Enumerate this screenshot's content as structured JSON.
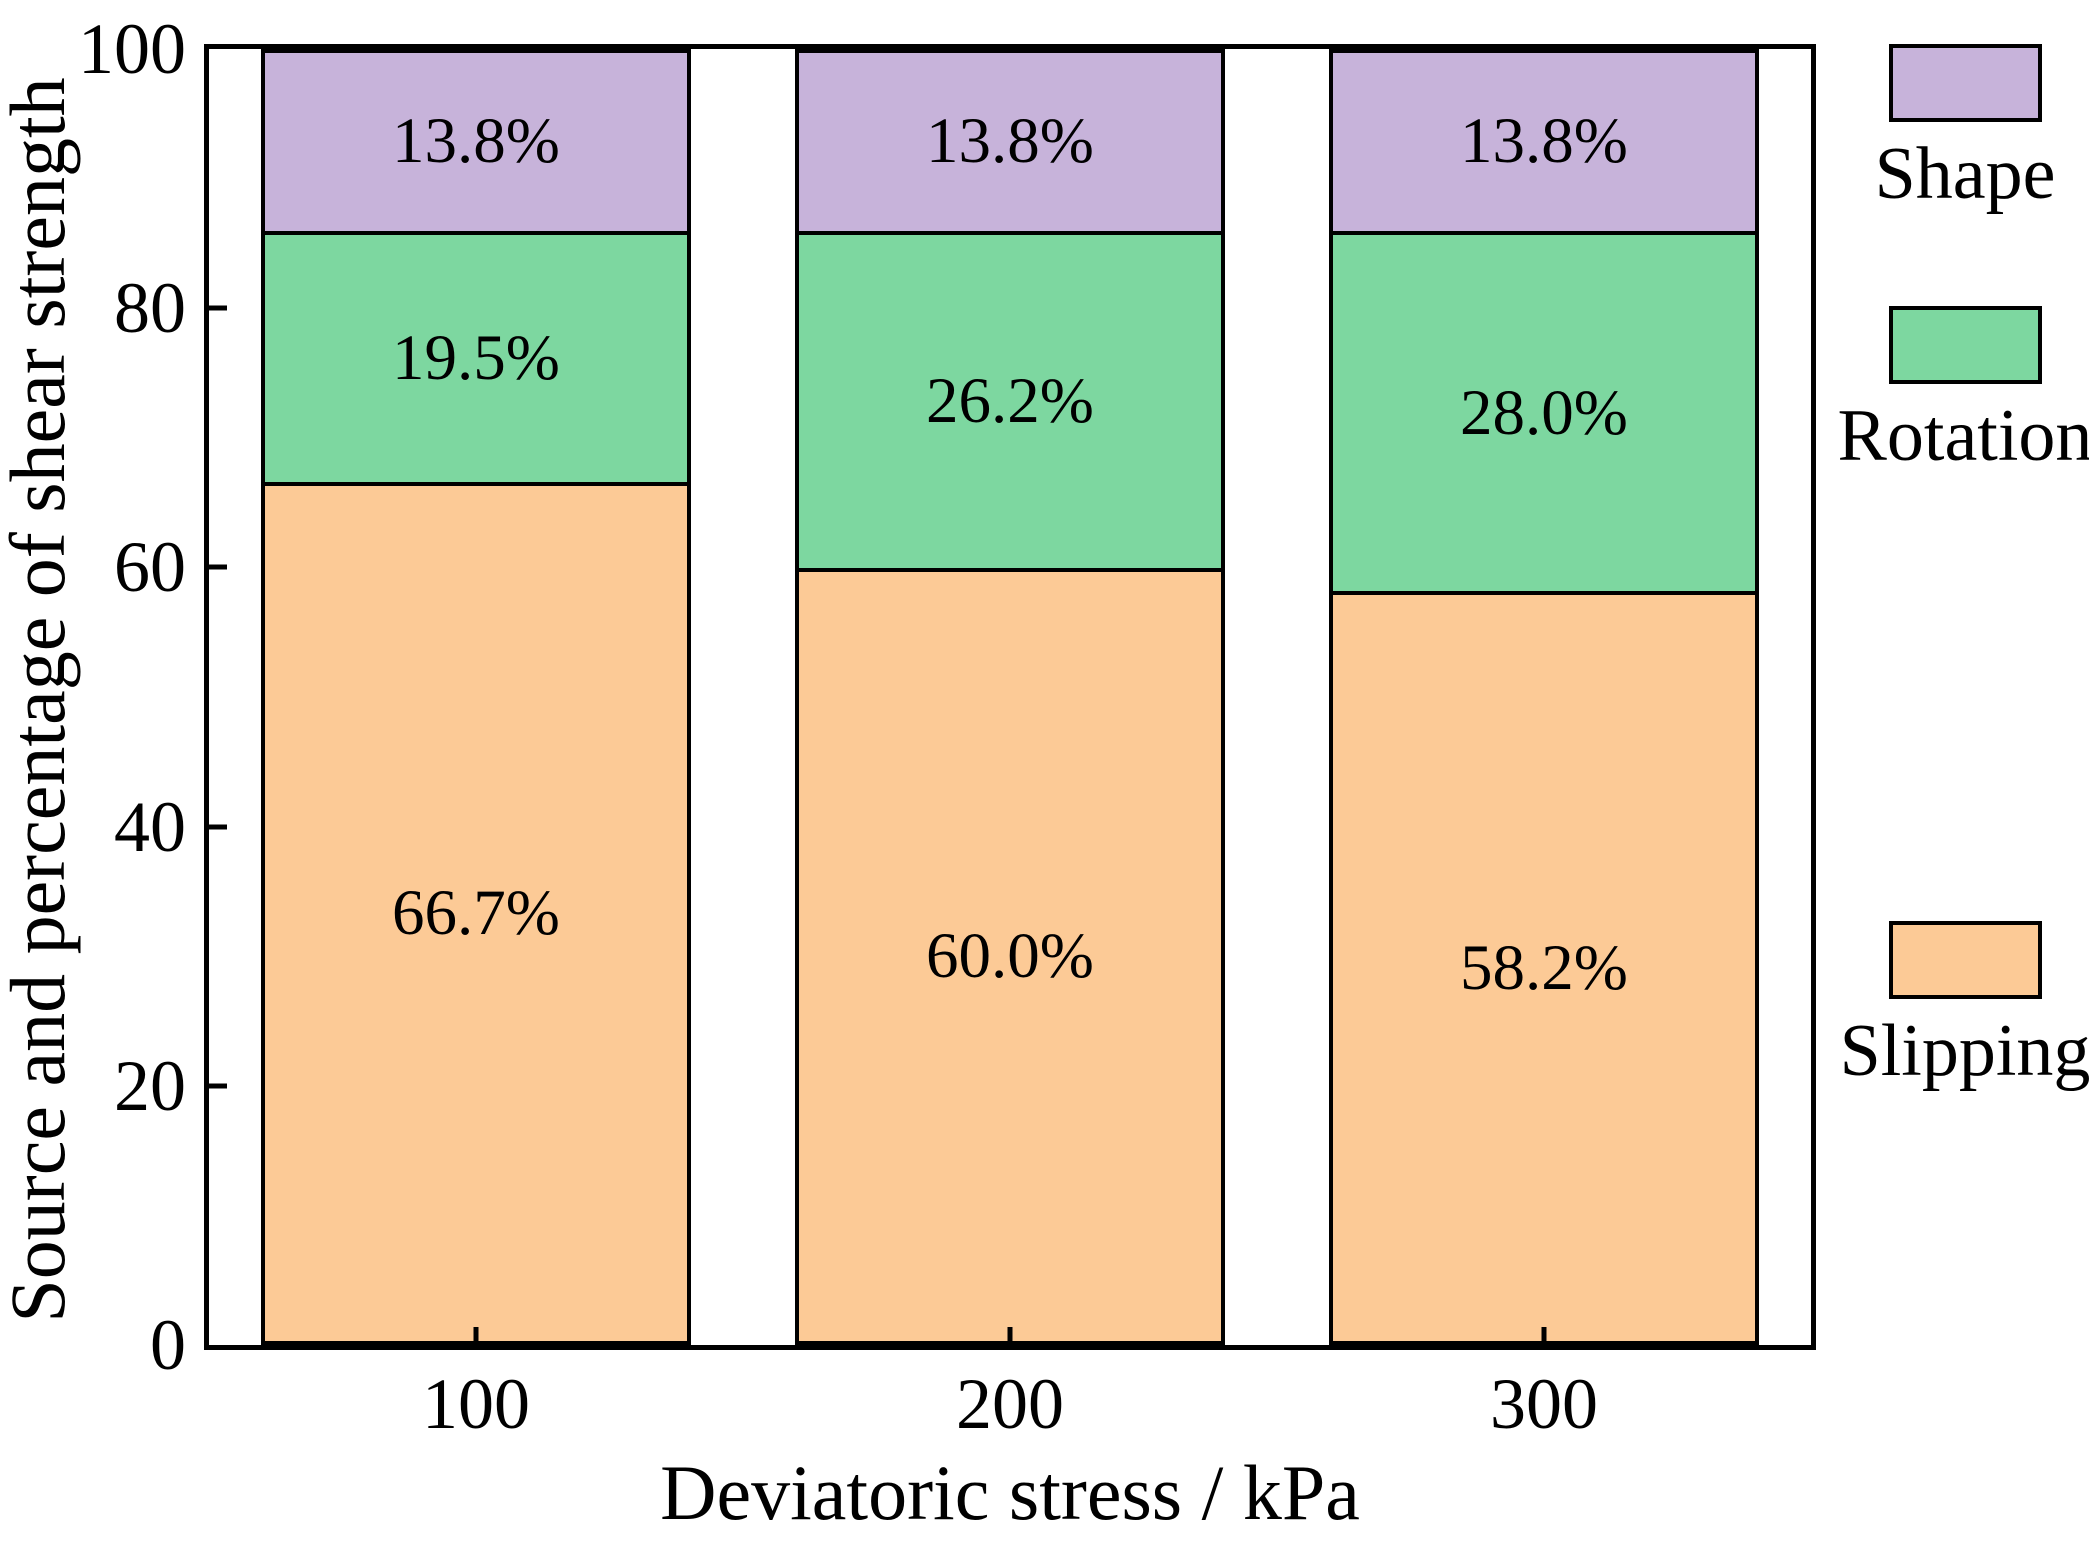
{
  "chart_data": {
    "type": "bar",
    "stacked": true,
    "title": "",
    "xlabel": "Deviatoric stress / kPa",
    "ylabel": "Source and percentage of shear strength",
    "categories": [
      "100",
      "200",
      "300"
    ],
    "series": [
      {
        "name": "Slipping",
        "color": "#FCCA96",
        "values": [
          66.7,
          60.0,
          58.2
        ],
        "labels": [
          "66.7%",
          "60.0%",
          "58.2%"
        ]
      },
      {
        "name": "Rotation",
        "color": "#7DD7A0",
        "values": [
          19.5,
          26.2,
          28.0
        ],
        "labels": [
          "19.5%",
          "26.2%",
          "28.0%"
        ]
      },
      {
        "name": "Shape",
        "color": "#C7B3DA",
        "values": [
          13.8,
          13.8,
          13.8
        ],
        "labels": [
          "13.8%",
          "13.8%",
          "13.8%"
        ]
      }
    ],
    "ylim": [
      0,
      100
    ],
    "y_ticks": [
      0,
      20,
      40,
      60,
      80,
      100
    ],
    "grid": false,
    "legend_position": "right-outside",
    "legend": [
      {
        "name": "Shape",
        "color": "#C7B3DA"
      },
      {
        "name": "Rotation",
        "color": "#7DD7A0"
      },
      {
        "name": "Slipping",
        "color": "#FCCA96"
      }
    ],
    "frame_color": "#000000",
    "text_color": "#000000",
    "background": "#FFFFFF"
  }
}
